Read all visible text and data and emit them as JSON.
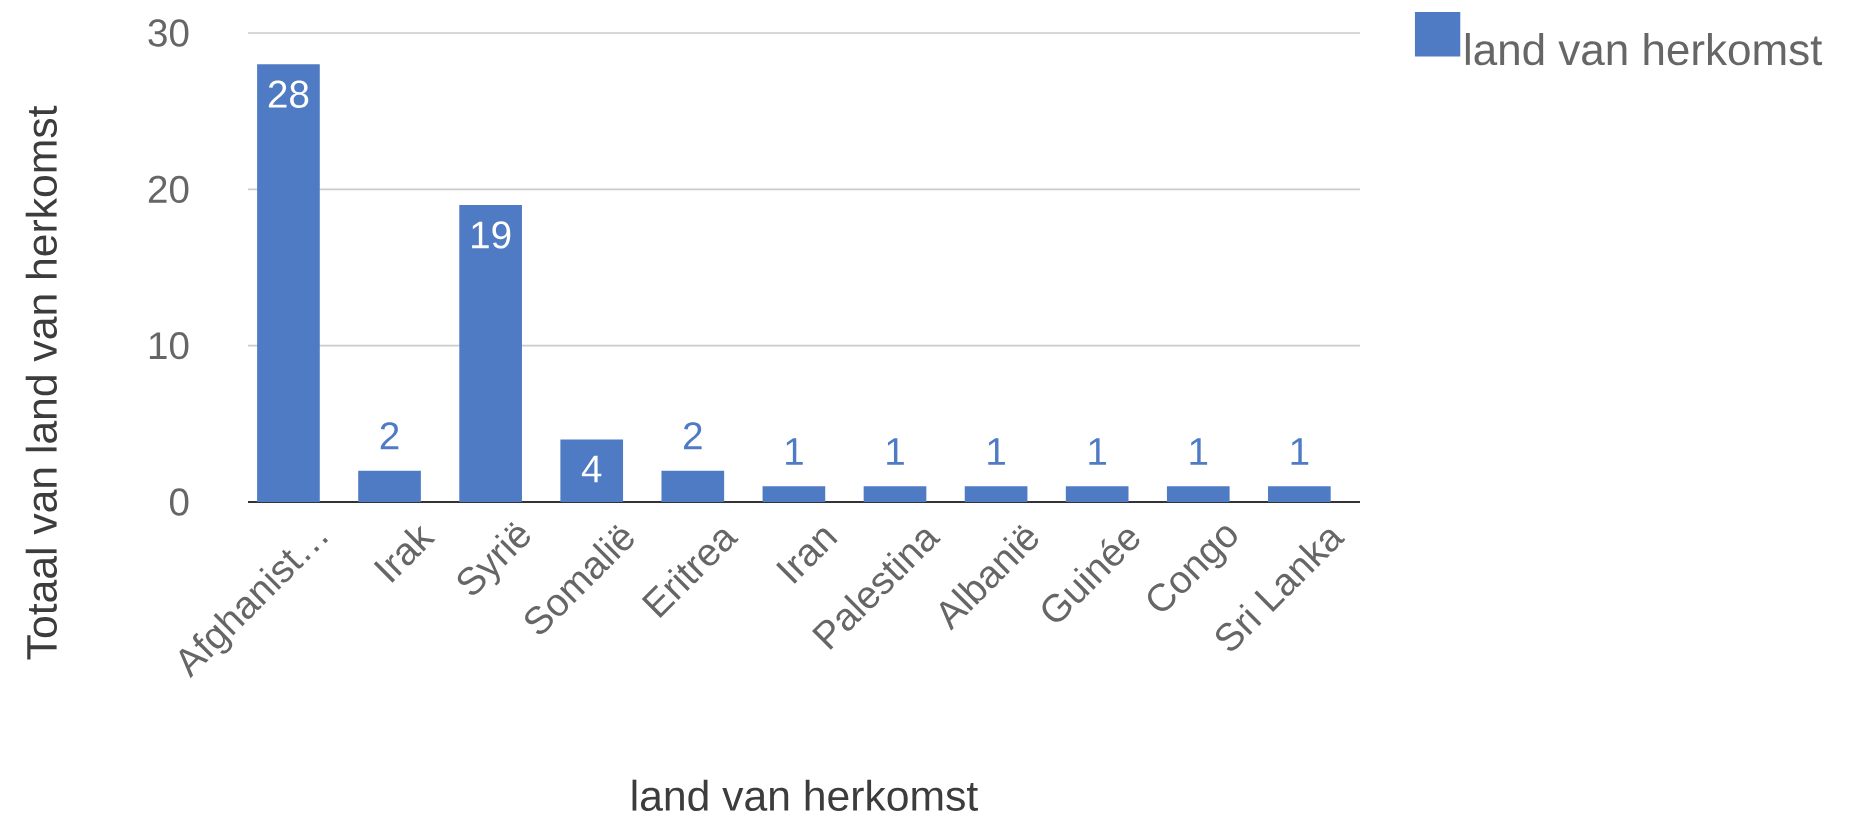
{
  "chart_data": {
    "type": "bar",
    "xlabel": "land van herkomst",
    "ylabel": "Totaal van land van herkomst",
    "categories": [
      "Afghanist…",
      "Irak",
      "Syrië",
      "Somalië",
      "Eritrea",
      "Iran",
      "Palestina",
      "Albanië",
      "Guinée",
      "Congo",
      "Sri Lanka"
    ],
    "series": [
      {
        "name": "land van herkomst",
        "color": "#4f7bc4",
        "values": [
          28,
          2,
          19,
          4,
          2,
          1,
          1,
          1,
          1,
          1,
          1
        ]
      }
    ],
    "ylim": [
      0,
      30
    ],
    "yticks": [
      0,
      10,
      20,
      30
    ],
    "grid": "y",
    "legend": "top right",
    "data_labels": true
  }
}
